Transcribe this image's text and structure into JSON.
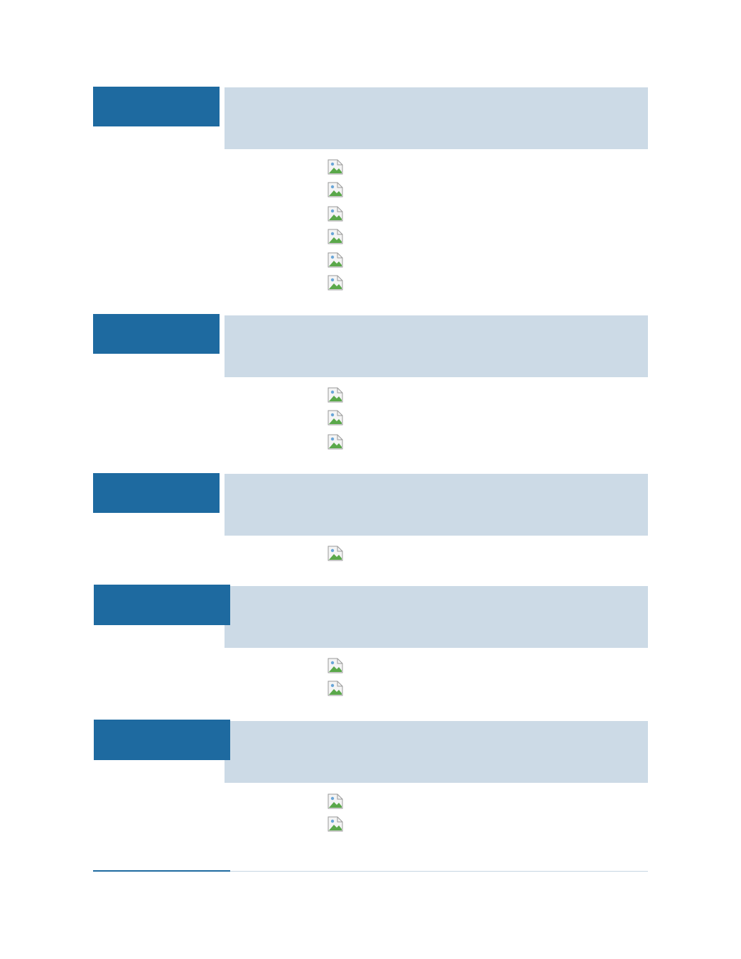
{
  "colors": {
    "tab_blue": "#1e6aa0",
    "band_light_blue": "#ccdae6",
    "footer_line": "#c6d6e3"
  },
  "sections": [
    {
      "tab_label": "",
      "band_text": "",
      "items": [
        "broken-image-icon",
        "broken-image-icon",
        "broken-image-icon",
        "broken-image-icon",
        "broken-image-icon",
        "broken-image-icon"
      ]
    },
    {
      "tab_label": "",
      "band_text": "",
      "items": [
        "broken-image-icon",
        "broken-image-icon",
        "broken-image-icon"
      ]
    },
    {
      "tab_label": "",
      "band_text": "",
      "items": [
        "broken-image-icon"
      ]
    },
    {
      "tab_label": "",
      "band_text": "",
      "items": [
        "broken-image-icon",
        "broken-image-icon"
      ]
    },
    {
      "tab_label": "",
      "band_text": "",
      "items": [
        "broken-image-icon",
        "broken-image-icon"
      ]
    }
  ]
}
